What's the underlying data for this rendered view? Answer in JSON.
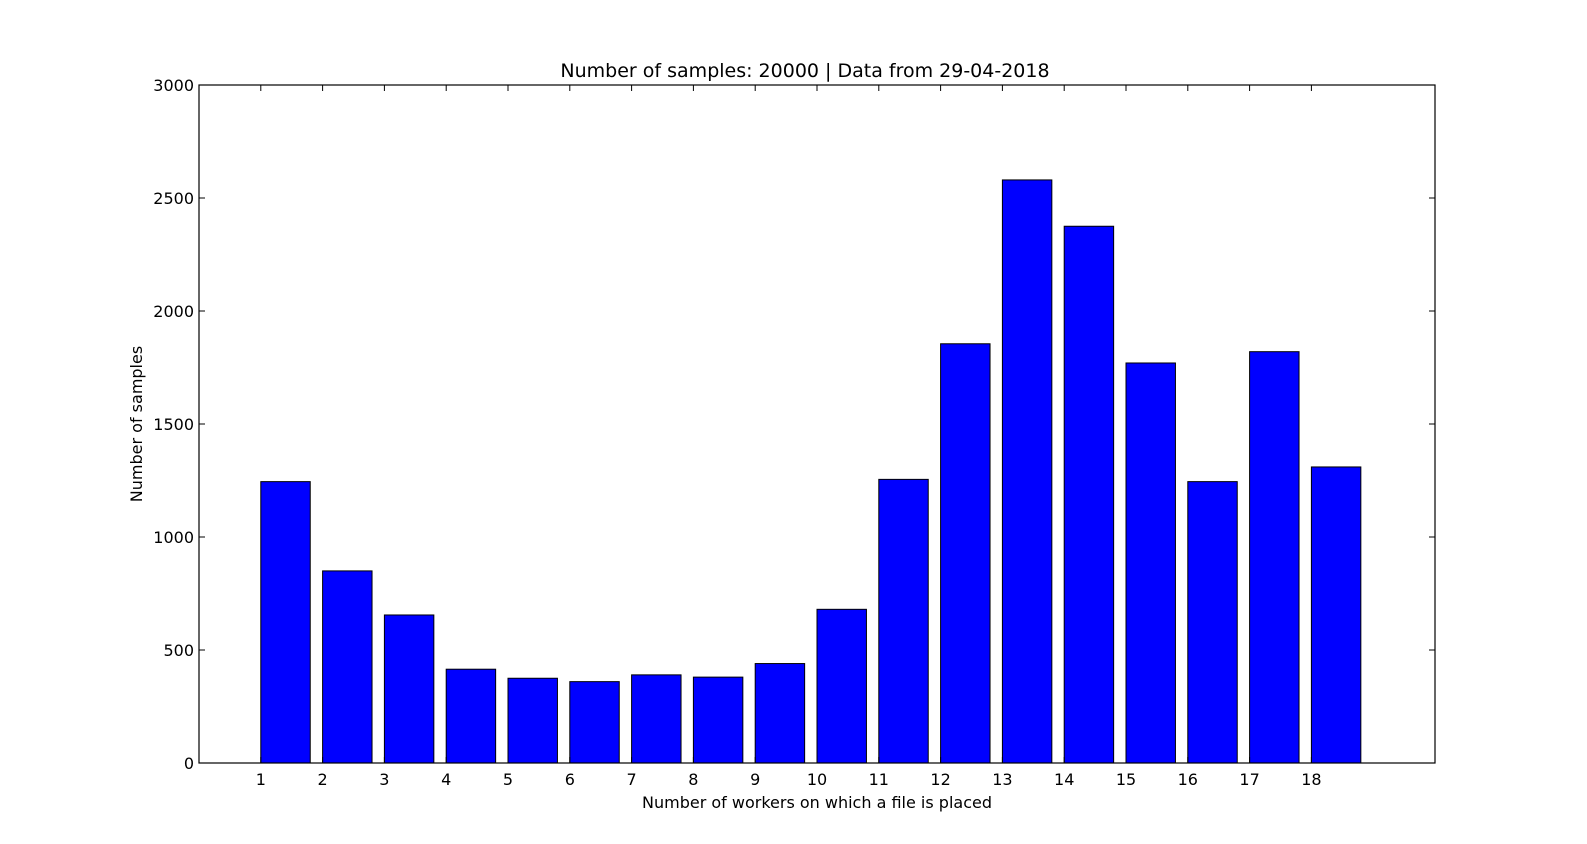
{
  "chart_data": {
    "type": "bar",
    "title": "Number of samples: 20000 | Data from 29-04-2018",
    "xlabel": "Number of workers on which a file is placed",
    "ylabel": "Number of samples",
    "categories": [
      "1",
      "2",
      "3",
      "4",
      "5",
      "6",
      "7",
      "8",
      "9",
      "10",
      "11",
      "12",
      "13",
      "14",
      "15",
      "16",
      "17",
      "18"
    ],
    "values": [
      1245,
      850,
      655,
      415,
      375,
      360,
      390,
      380,
      440,
      680,
      1255,
      1855,
      2580,
      2375,
      1770,
      1245,
      1820,
      1310
    ],
    "ylim": [
      0,
      3000
    ],
    "yticks": [
      "0",
      "500",
      "1000",
      "1500",
      "2000",
      "2500",
      "3000"
    ],
    "xlim": [
      0,
      20
    ],
    "bar_color": "#0000ff",
    "grid": false
  }
}
